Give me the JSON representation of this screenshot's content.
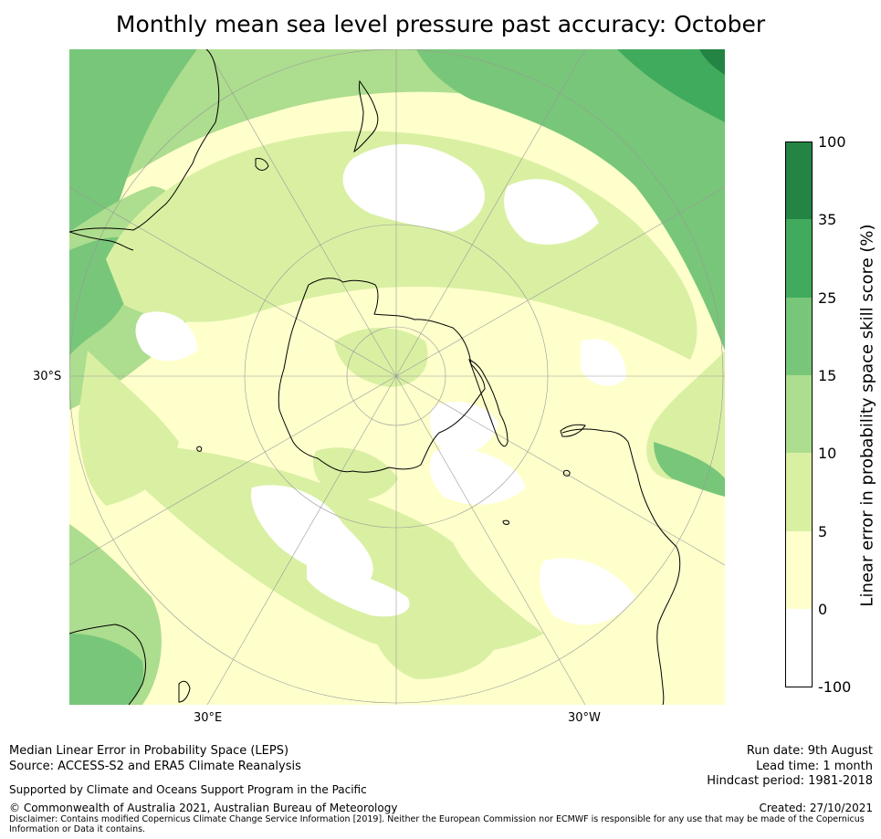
{
  "title": "Monthly mean sea level pressure past accuracy: October",
  "map": {
    "projection": "south-polar-stereographic",
    "lat_labels": [
      {
        "text": "30°S"
      }
    ],
    "lon_labels": [
      {
        "text": "30°E"
      },
      {
        "text": "30°W"
      }
    ],
    "colors": {
      "ocean_light": "#ffffcc",
      "white": "#ffffff",
      "lvl_5_10": "#d9f0a3",
      "lvl_10_15": "#addd8e",
      "lvl_15_25": "#78c679",
      "lvl_25_35": "#41ab5d",
      "lvl_35_100": "#238443",
      "grid": "#999999",
      "coast": "#000000"
    }
  },
  "colorbar": {
    "label": "Linear error in probability space skill score (%)",
    "ticks": [
      "100",
      "35",
      "25",
      "15",
      "10",
      "5",
      "0",
      "-100"
    ],
    "bands": [
      {
        "from": -100,
        "to": 0,
        "color": "#ffffff"
      },
      {
        "from": 0,
        "to": 5,
        "color": "#ffffcc"
      },
      {
        "from": 5,
        "to": 10,
        "color": "#d9f0a3"
      },
      {
        "from": 10,
        "to": 15,
        "color": "#addd8e"
      },
      {
        "from": 15,
        "to": 25,
        "color": "#78c679"
      },
      {
        "from": 25,
        "to": 35,
        "color": "#41ab5d"
      },
      {
        "from": 35,
        "to": 100,
        "color": "#238443"
      }
    ]
  },
  "footer": {
    "line1": "Median Linear Error in Probability Space (LEPS)",
    "line2": "Source: ACCESS-S2 and ERA5 Climate Reanalysis",
    "support": "Supported by Climate and Oceans Support Program in the Pacific",
    "copyright": "© Commonwealth of Australia 2021, Australian Bureau of Meteorology",
    "disclaimer_1": "Disclaimer: Contains modified Copernicus Climate Change Service Information [2019]. Neither the European Commission nor ECMWF is responsible for any use that may be made of the Copernicus",
    "disclaimer_2": "Information or Data it contains.",
    "run_date": "Run date: 9th August",
    "lead_time": "Lead time: 1 month",
    "hindcast": "Hindcast period: 1981-2018",
    "created": "Created: 27/10/2021"
  }
}
